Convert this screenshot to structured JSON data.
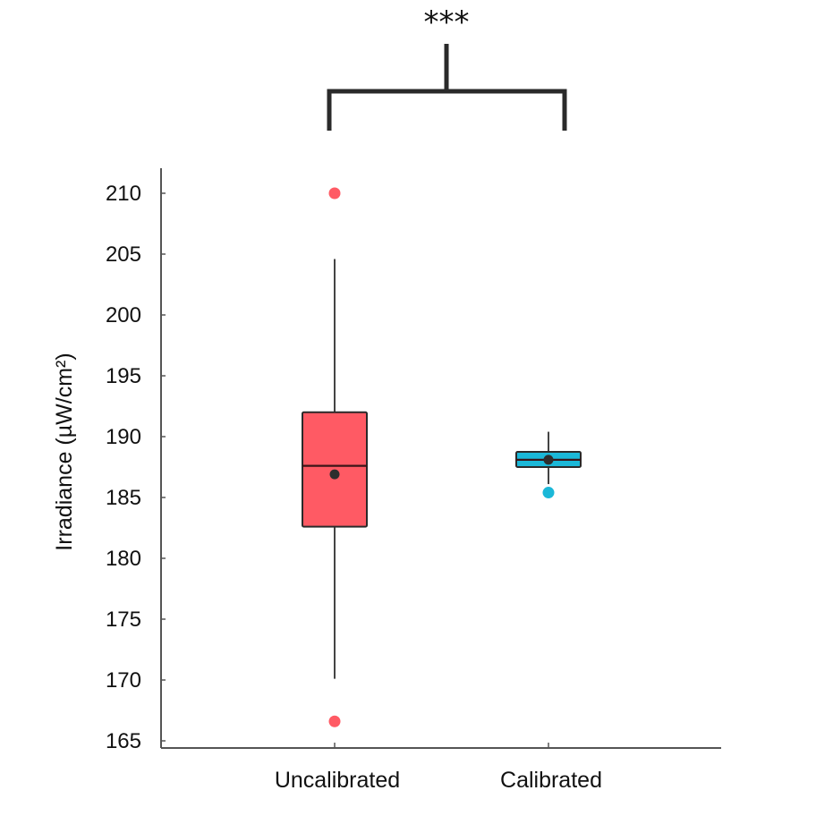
{
  "chart_data": {
    "type": "box",
    "title": "",
    "xlabel": "",
    "ylabel": "Irradiance (µW/cm²)",
    "ylim": [
      165,
      212
    ],
    "yticks": [
      165,
      170,
      175,
      180,
      185,
      190,
      195,
      200,
      205,
      210
    ],
    "grid": false,
    "legend": null,
    "categories": [
      "Uncalibrated",
      "Calibrated"
    ],
    "series": [
      {
        "name": "Uncalibrated",
        "color": "#FF5A64",
        "outlier_color": "#FF5A64",
        "whisker_low": 170.1,
        "q1": 182.6,
        "median": 187.6,
        "mean": 186.9,
        "q3": 192.0,
        "whisker_high": 204.6,
        "outliers": [
          210.0,
          166.6
        ]
      },
      {
        "name": "Calibrated",
        "color": "#1BB8D8",
        "outlier_color": "#1BB8D8",
        "whisker_low": 186.1,
        "q1": 187.5,
        "median": 188.1,
        "mean": 188.1,
        "q3": 188.75,
        "whisker_high": 190.4,
        "outliers": [
          185.4
        ]
      }
    ],
    "annotations": [
      {
        "type": "significance-bracket",
        "between": [
          "Uncalibrated",
          "Calibrated"
        ],
        "text": "***"
      }
    ]
  }
}
